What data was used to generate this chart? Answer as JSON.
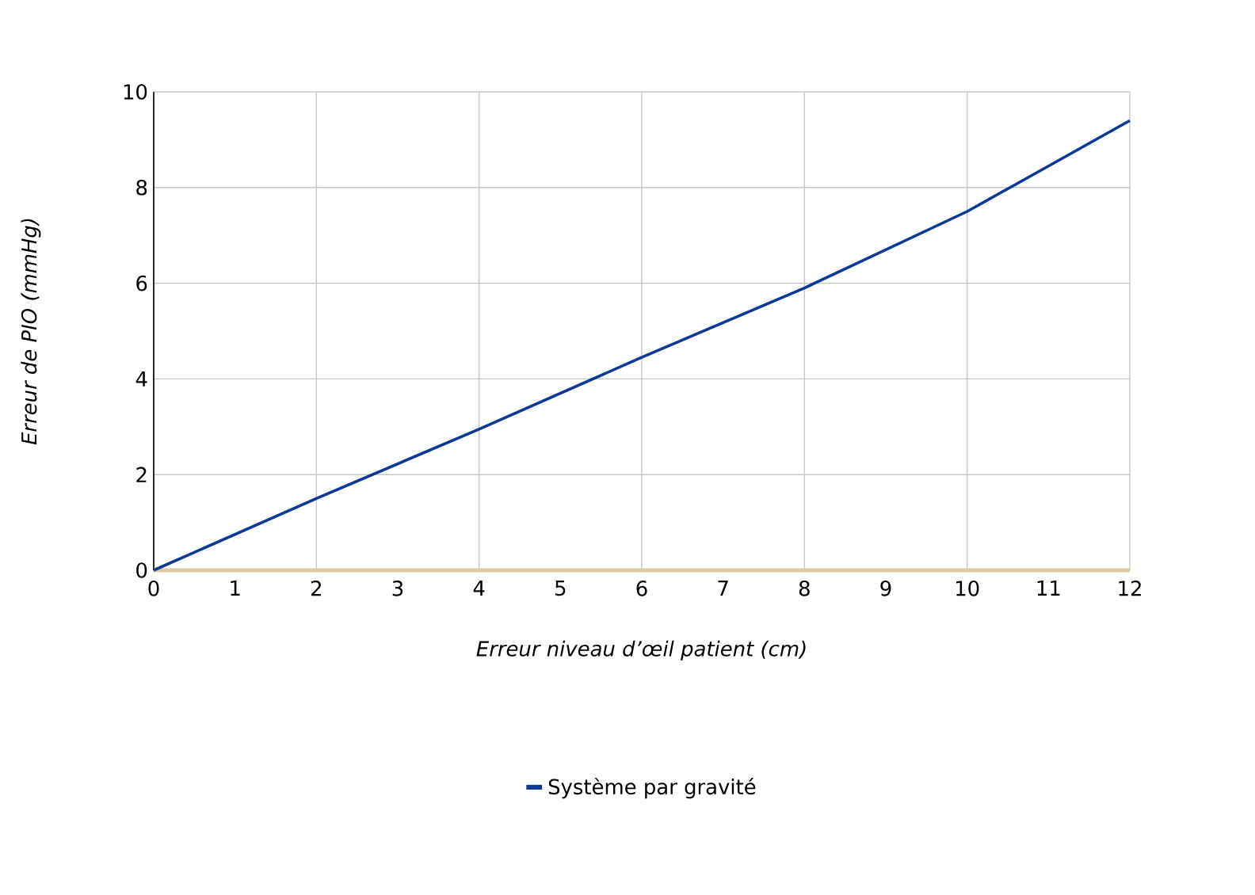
{
  "chart_data": {
    "type": "line",
    "xlabel": "Erreur niveau d’œil patient (cm)",
    "ylabel": "Erreur de PIO (mmHg)",
    "x": [
      0,
      2,
      4,
      6,
      8,
      10,
      12
    ],
    "series": [
      {
        "name": "Système par gravité",
        "color": "#0a3a94",
        "values": [
          0,
          1.5,
          2.95,
          4.45,
          5.9,
          7.5,
          9.4
        ]
      },
      {
        "color": "#dccba6",
        "values": [
          0,
          0,
          0,
          0,
          0,
          0,
          0
        ]
      }
    ],
    "xlim": [
      0,
      12
    ],
    "xticks": [
      0,
      1,
      2,
      3,
      4,
      5,
      6,
      7,
      8,
      9,
      10,
      11,
      12
    ],
    "ylim": [
      0,
      10
    ],
    "yticks": [
      0,
      2,
      4,
      6,
      8,
      10
    ],
    "grid": true,
    "legend": "bottom",
    "marker": "none",
    "line_style": "solid"
  }
}
